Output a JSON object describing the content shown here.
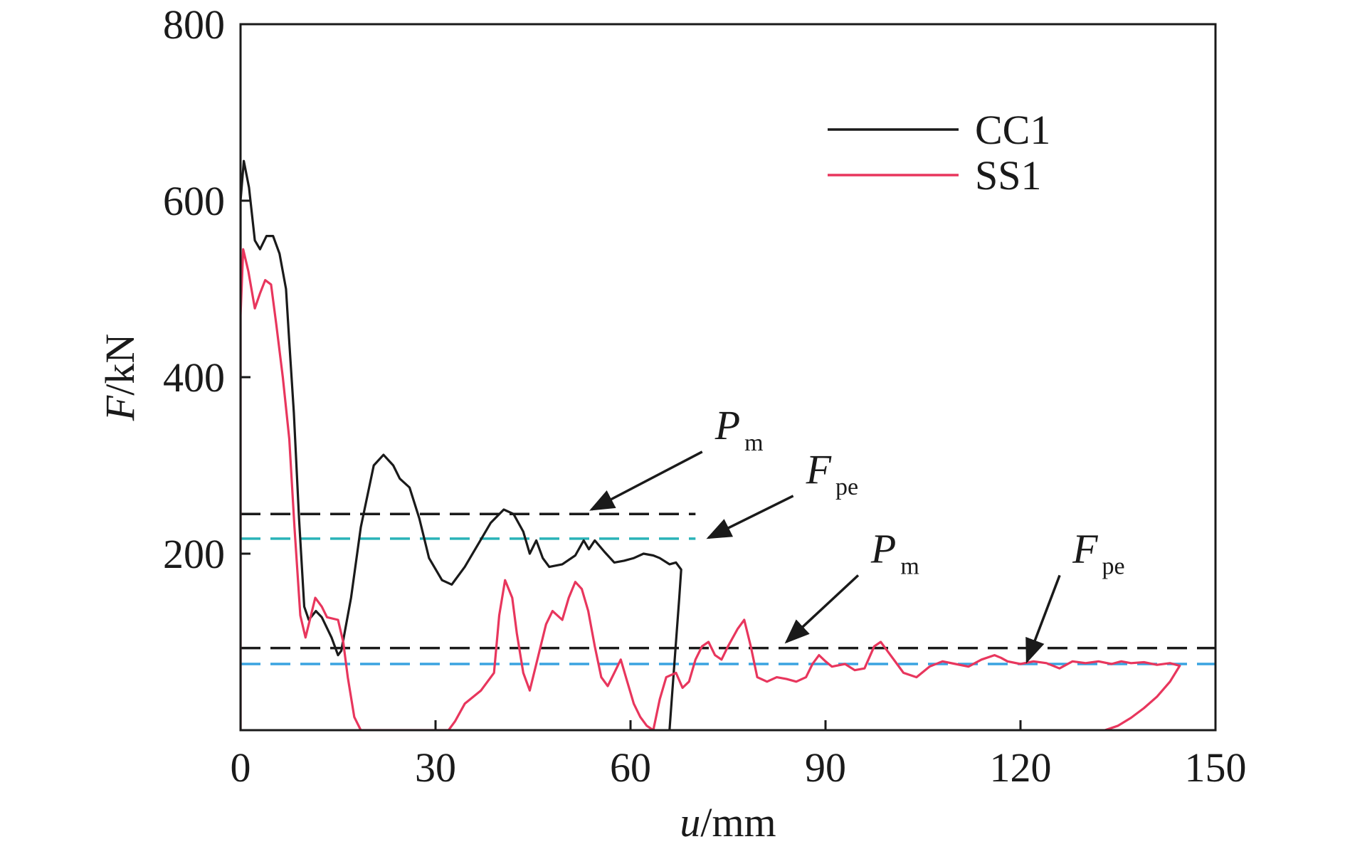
{
  "chart_data": {
    "type": "line",
    "xlabel": {
      "var": "u",
      "unit": "/mm"
    },
    "ylabel": {
      "var": "F",
      "unit": "/kN"
    },
    "xlim": [
      0,
      150
    ],
    "ylim": [
      0,
      800
    ],
    "x_ticks": [
      0,
      30,
      60,
      90,
      120,
      150
    ],
    "y_ticks": [
      200,
      400,
      600,
      800
    ],
    "x_tick_labels": [
      "0",
      "30",
      "60",
      "90",
      "120",
      "150"
    ],
    "y_tick_labels": [
      "200",
      "400",
      "600",
      "800"
    ],
    "grid": false,
    "legend": {
      "position": "top-right"
    },
    "series": [
      {
        "name": "CC1",
        "color": "#1a1a1a",
        "points": [
          [
            0,
            0
          ],
          [
            0,
            600
          ],
          [
            0.5,
            645
          ],
          [
            1.3,
            615
          ],
          [
            2.2,
            555
          ],
          [
            3,
            545
          ],
          [
            4,
            560
          ],
          [
            5,
            560
          ],
          [
            6,
            540
          ],
          [
            7,
            500
          ],
          [
            7.5,
            440
          ],
          [
            8.2,
            360
          ],
          [
            9,
            240
          ],
          [
            9.8,
            140
          ],
          [
            10.5,
            125
          ],
          [
            11.6,
            135
          ],
          [
            12.5,
            128
          ],
          [
            14,
            105
          ],
          [
            15,
            85
          ],
          [
            15.5,
            90
          ],
          [
            17,
            150
          ],
          [
            18.5,
            230
          ],
          [
            20.5,
            300
          ],
          [
            22,
            312
          ],
          [
            23.5,
            300
          ],
          [
            24.5,
            285
          ],
          [
            26,
            275
          ],
          [
            27.5,
            240
          ],
          [
            29,
            195
          ],
          [
            31,
            170
          ],
          [
            32.5,
            165
          ],
          [
            34.5,
            185
          ],
          [
            36.5,
            210
          ],
          [
            38.5,
            235
          ],
          [
            40.5,
            250
          ],
          [
            42,
            245
          ],
          [
            43.5,
            225
          ],
          [
            44.5,
            200
          ],
          [
            45.5,
            215
          ],
          [
            46.5,
            195
          ],
          [
            47.5,
            185
          ],
          [
            49.5,
            188
          ],
          [
            51.5,
            198
          ],
          [
            52.8,
            215
          ],
          [
            53.6,
            205
          ],
          [
            54.5,
            215
          ],
          [
            56,
            202
          ],
          [
            57.5,
            190
          ],
          [
            59,
            192
          ],
          [
            60.5,
            195
          ],
          [
            62,
            200
          ],
          [
            63.5,
            198
          ],
          [
            64.5,
            195
          ],
          [
            66,
            188
          ],
          [
            67,
            190
          ],
          [
            67.8,
            182
          ],
          [
            67.5,
            150
          ],
          [
            67,
            100
          ],
          [
            66.3,
            30
          ],
          [
            66,
            0
          ]
        ]
      },
      {
        "name": "SS1",
        "color": "#e8365d",
        "points": [
          [
            0,
            0
          ],
          [
            0,
            470
          ],
          [
            0.4,
            545
          ],
          [
            1.2,
            520
          ],
          [
            2.2,
            478
          ],
          [
            3,
            495
          ],
          [
            3.8,
            510
          ],
          [
            4.7,
            505
          ],
          [
            5.5,
            460
          ],
          [
            6.5,
            400
          ],
          [
            7.5,
            330
          ],
          [
            8.3,
            230
          ],
          [
            9.2,
            130
          ],
          [
            10,
            105
          ],
          [
            11.5,
            150
          ],
          [
            12.5,
            140
          ],
          [
            13.3,
            128
          ],
          [
            15,
            125
          ],
          [
            15.8,
            100
          ],
          [
            16.5,
            60
          ],
          [
            17.5,
            15
          ],
          [
            18.5,
            0
          ],
          [
            32,
            0
          ],
          [
            33,
            10
          ],
          [
            34.5,
            30
          ],
          [
            37,
            45
          ],
          [
            39,
            65
          ],
          [
            39.8,
            130
          ],
          [
            40.7,
            170
          ],
          [
            41.8,
            150
          ],
          [
            42.5,
            110
          ],
          [
            43.5,
            65
          ],
          [
            44.5,
            45
          ],
          [
            45.5,
            75
          ],
          [
            47,
            120
          ],
          [
            48,
            135
          ],
          [
            49.5,
            125
          ],
          [
            50.5,
            150
          ],
          [
            51.5,
            168
          ],
          [
            52.5,
            160
          ],
          [
            53.5,
            135
          ],
          [
            54.5,
            95
          ],
          [
            55.5,
            60
          ],
          [
            56.5,
            50
          ],
          [
            57.5,
            65
          ],
          [
            58.5,
            80
          ],
          [
            59.5,
            55
          ],
          [
            60.5,
            30
          ],
          [
            61.5,
            15
          ],
          [
            62.5,
            5
          ],
          [
            63.5,
            0
          ],
          [
            64.5,
            35
          ],
          [
            65.5,
            60
          ],
          [
            67,
            65
          ],
          [
            68,
            48
          ],
          [
            69,
            55
          ],
          [
            70,
            80
          ],
          [
            71,
            95
          ],
          [
            72,
            100
          ],
          [
            73,
            85
          ],
          [
            74,
            80
          ],
          [
            75,
            95
          ],
          [
            76.5,
            115
          ],
          [
            77.5,
            125
          ],
          [
            78.5,
            95
          ],
          [
            79.5,
            60
          ],
          [
            81,
            55
          ],
          [
            82.5,
            60
          ],
          [
            84,
            58
          ],
          [
            85.5,
            55
          ],
          [
            87,
            60
          ],
          [
            88,
            75
          ],
          [
            89,
            85
          ],
          [
            90,
            78
          ],
          [
            91,
            72
          ],
          [
            93,
            75
          ],
          [
            94.5,
            68
          ],
          [
            96,
            70
          ],
          [
            97.5,
            95
          ],
          [
            98.5,
            100
          ],
          [
            99.5,
            90
          ],
          [
            101,
            75
          ],
          [
            102,
            65
          ],
          [
            104,
            60
          ],
          [
            106,
            72
          ],
          [
            108,
            78
          ],
          [
            110,
            75
          ],
          [
            112,
            72
          ],
          [
            114,
            80
          ],
          [
            116,
            85
          ],
          [
            117,
            82
          ],
          [
            118,
            78
          ],
          [
            120,
            75
          ],
          [
            122,
            78
          ],
          [
            124,
            76
          ],
          [
            126,
            70
          ],
          [
            128,
            78
          ],
          [
            130,
            76
          ],
          [
            132,
            78
          ],
          [
            134,
            75
          ],
          [
            135.5,
            78
          ],
          [
            137,
            76
          ],
          [
            139,
            77
          ],
          [
            141,
            74
          ],
          [
            143,
            76
          ],
          [
            144.5,
            73
          ],
          [
            143,
            55
          ],
          [
            141,
            38
          ],
          [
            139,
            25
          ],
          [
            137,
            14
          ],
          [
            135,
            5
          ],
          [
            133,
            0
          ]
        ]
      }
    ],
    "reference_lines": [
      {
        "label": "P_m",
        "series": "CC1",
        "y": 245,
        "x0": 0,
        "x1": 70,
        "color": "#1a1a1a"
      },
      {
        "label": "F_pe",
        "series": "CC1",
        "y": 217,
        "x0": 0,
        "x1": 70,
        "color": "#2ab3b8"
      },
      {
        "label": "P_m",
        "series": "SS1",
        "y": 93,
        "x0": 0,
        "x1": 150,
        "color": "#1a1a1a"
      },
      {
        "label": "F_pe",
        "series": "SS1",
        "y": 75,
        "x0": 0,
        "x1": 150,
        "color": "#3aa3e0"
      }
    ],
    "annotations": [
      {
        "main": "P",
        "sub": "m",
        "text_at": [
          73,
          330
        ],
        "arrow_to": [
          54,
          250
        ]
      },
      {
        "main": "F",
        "sub": "pe",
        "text_at": [
          87,
          280
        ],
        "arrow_to": [
          72,
          218
        ]
      },
      {
        "main": "P",
        "sub": "m",
        "text_at": [
          97,
          190
        ],
        "arrow_to": [
          84,
          100
        ]
      },
      {
        "main": "F",
        "sub": "pe",
        "text_at": [
          128,
          190
        ],
        "arrow_to": [
          121,
          78
        ]
      }
    ]
  }
}
